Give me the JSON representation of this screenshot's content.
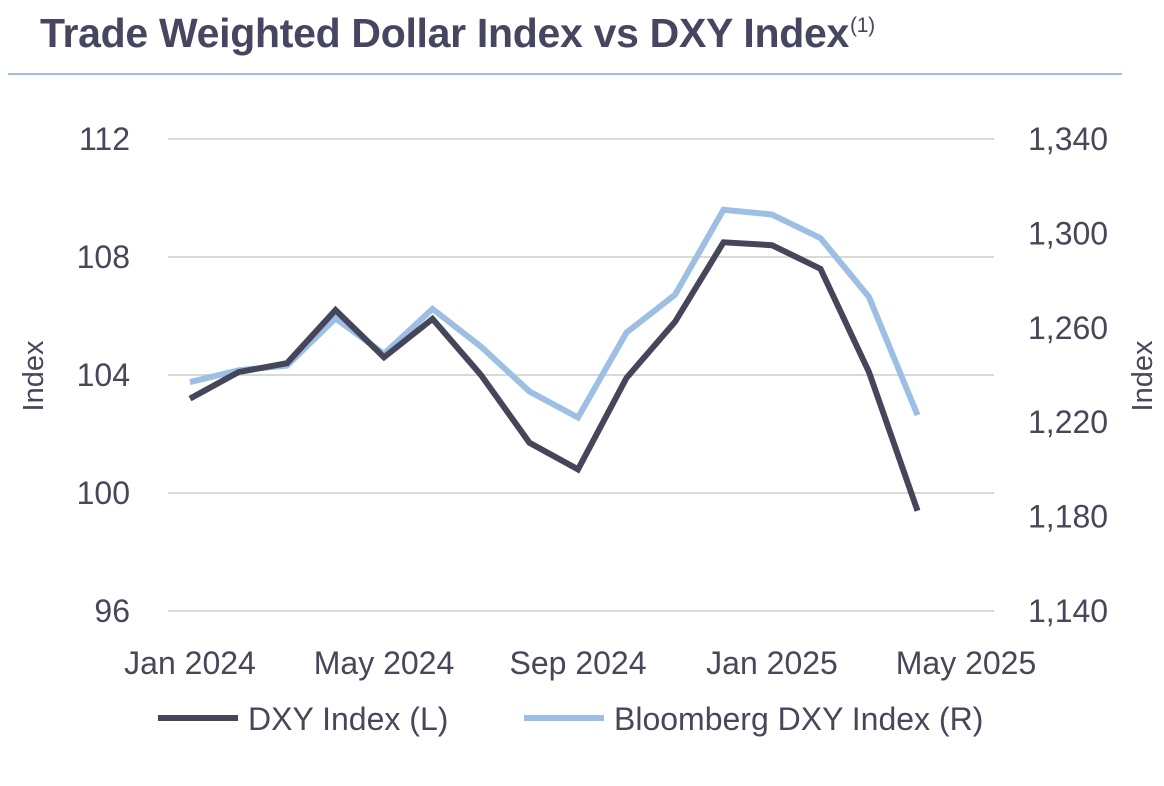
{
  "header": {
    "title": "Trade Weighted Dollar Index vs DXY Index",
    "footnote_marker": "(1)"
  },
  "colors": {
    "title": "#464660",
    "rule": "#9cbfe3",
    "dxy": "#46465a",
    "bloomberg": "#9cbfe3",
    "grid": "#d9d9d9",
    "text": "#47475a"
  },
  "chart_data": {
    "type": "line",
    "x": [
      "Jan 2024",
      "Feb 2024",
      "Mar 2024",
      "Apr 2024",
      "May 2024",
      "Jun 2024",
      "Jul 2024",
      "Aug 2024",
      "Sep 2024",
      "Oct 2024",
      "Nov 2024",
      "Dec 2024",
      "Jan 2025",
      "Feb 2025",
      "Mar 2025",
      "Apr 2025"
    ],
    "x_tick_labels": [
      "Jan 2024",
      "May 2024",
      "Sep 2024",
      "Jan 2025",
      "May 2025"
    ],
    "x_tick_dates": [
      "Jan 2024",
      "May 2024",
      "Sep 2024",
      "Jan 2025",
      "May 2025"
    ],
    "y_left": {
      "label": "Index",
      "ticks": [
        96,
        100,
        104,
        108,
        112
      ],
      "tick_labels": [
        "96",
        "100",
        "104",
        "108",
        "112"
      ],
      "range": [
        96,
        112
      ]
    },
    "y_right": {
      "label": "Index",
      "ticks": [
        1140,
        1180,
        1220,
        1260,
        1300,
        1340
      ],
      "tick_labels": [
        "1,140",
        "1,180",
        "1,220",
        "1,260",
        "1,300",
        "1,340"
      ],
      "range": [
        1140,
        1340
      ]
    },
    "series": [
      {
        "name": "DXY Index (L)",
        "axis": "left",
        "values": [
          103.2,
          104.1,
          104.4,
          106.2,
          104.6,
          105.9,
          104.0,
          101.7,
          100.8,
          103.9,
          105.8,
          108.5,
          108.4,
          107.6,
          104.1,
          99.4
        ]
      },
      {
        "name": "Bloomberg DXY Index (R)",
        "axis": "right",
        "values": [
          1237,
          1242,
          1244,
          1264,
          1249,
          1268,
          1252,
          1233,
          1222,
          1258,
          1274,
          1310,
          1308,
          1298,
          1273,
          1223
        ]
      }
    ],
    "grid": "horizontal",
    "legend": "bottom"
  }
}
